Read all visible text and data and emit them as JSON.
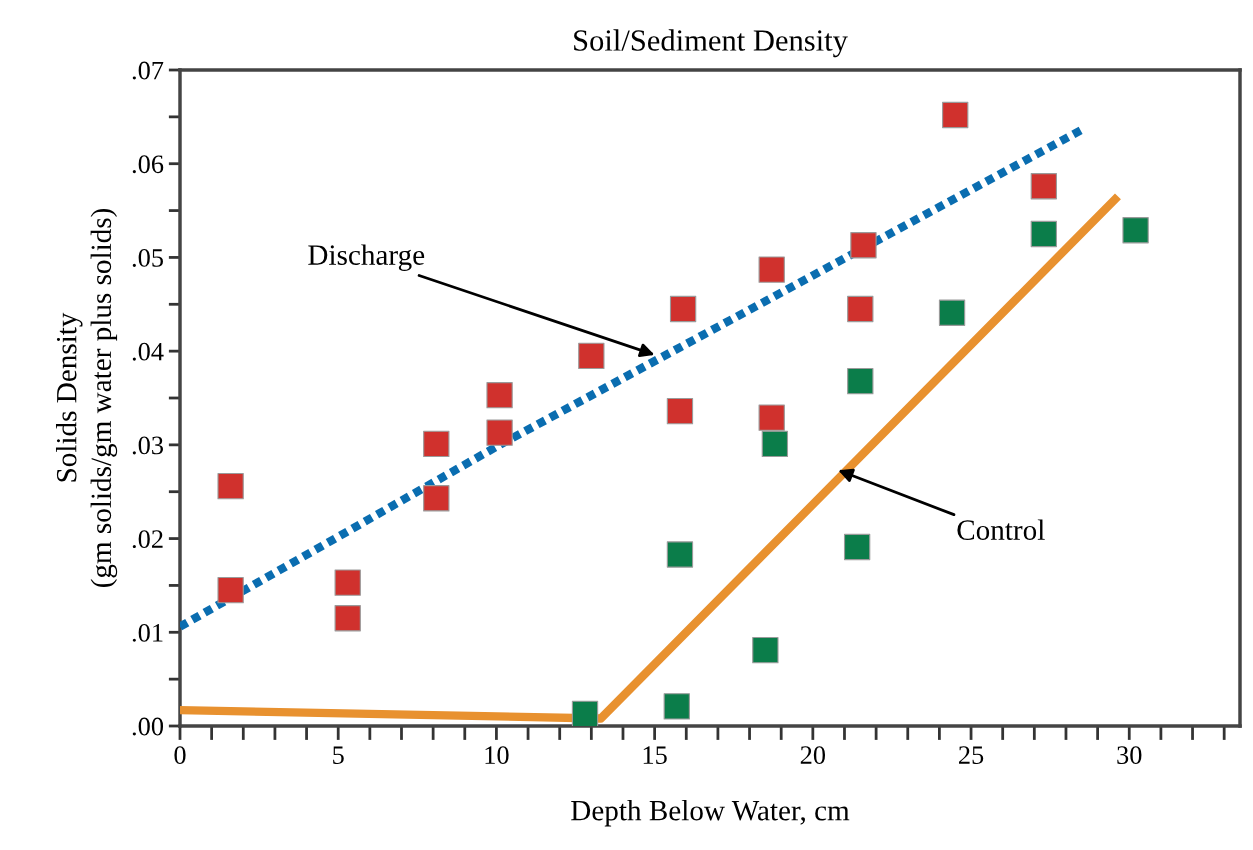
{
  "chart_data": {
    "type": "scatter",
    "title": "Soil/Sediment Density",
    "xlabel": "Depth Below Water, cm",
    "ylabel": "Solids Density\n(gm solids/gm water plus solids)",
    "xlim": [
      0,
      33.5
    ],
    "ylim": [
      0,
      0.07
    ],
    "xticks": [
      0,
      {
        "value": 1,
        "label": null
      },
      {
        "value": 2,
        "label": null
      },
      {
        "value": 3,
        "label": null
      },
      {
        "value": 4,
        "label": null
      },
      5,
      {
        "value": 6,
        "label": null
      },
      {
        "value": 7,
        "label": null
      },
      {
        "value": 8,
        "label": null
      },
      {
        "value": 9,
        "label": null
      },
      10,
      {
        "value": 11,
        "label": null
      },
      {
        "value": 12,
        "label": null
      },
      {
        "value": 13,
        "label": null
      },
      {
        "value": 14,
        "label": null
      },
      15,
      {
        "value": 16,
        "label": null
      },
      {
        "value": 17,
        "label": null
      },
      {
        "value": 18,
        "label": null
      },
      {
        "value": 19,
        "label": null
      },
      20,
      {
        "value": 21,
        "label": null
      },
      {
        "value": 22,
        "label": null
      },
      {
        "value": 23,
        "label": null
      },
      {
        "value": 24,
        "label": null
      },
      25,
      {
        "value": 26,
        "label": null
      },
      {
        "value": 27,
        "label": null
      },
      {
        "value": 28,
        "label": null
      },
      {
        "value": 29,
        "label": null
      },
      30,
      {
        "value": 31,
        "label": null
      },
      {
        "value": 32,
        "label": null
      },
      {
        "value": 33,
        "label": null
      }
    ],
    "yticks": [
      {
        "value": 0,
        "label": ".00"
      },
      {
        "value": 0.005,
        "label": null
      },
      {
        "value": 0.01,
        "label": ".01"
      },
      {
        "value": 0.015,
        "label": null
      },
      {
        "value": 0.02,
        "label": ".02"
      },
      {
        "value": 0.025,
        "label": null
      },
      {
        "value": 0.03,
        "label": ".03"
      },
      {
        "value": 0.035,
        "label": null
      },
      {
        "value": 0.04,
        "label": ".04"
      },
      {
        "value": 0.045,
        "label": null
      },
      {
        "value": 0.05,
        "label": ".05"
      },
      {
        "value": 0.055,
        "label": null
      },
      {
        "value": 0.06,
        "label": ".06"
      },
      {
        "value": 0.065,
        "label": null
      },
      {
        "value": 0.07,
        "label": ".07"
      }
    ],
    "grid": false,
    "legend": false,
    "series": [
      {
        "marker": "square",
        "color": "#d0312d",
        "x": [
          1.6,
          1.6,
          5.3,
          5.3,
          8.1,
          8.1,
          10.1,
          10.1,
          13.0,
          15.9,
          15.8,
          18.7,
          18.7,
          21.6,
          21.5,
          24.5,
          27.3
        ],
        "values": [
          0.0256,
          0.0145,
          0.0153,
          0.0115,
          0.0301,
          0.0243,
          0.0353,
          0.0313,
          0.0395,
          0.0445,
          0.0336,
          0.0487,
          0.0329,
          0.0513,
          0.0445,
          0.0652,
          0.0576
        ]
      },
      {
        "marker": "square",
        "color": "#0b7d4a",
        "x": [
          12.8,
          15.7,
          15.8,
          18.5,
          18.8,
          21.4,
          21.5,
          24.4,
          27.3,
          30.2
        ],
        "values": [
          0.0013,
          0.0021,
          0.0183,
          0.0081,
          0.0301,
          0.0191,
          0.0368,
          0.0441,
          0.0525,
          0.0529
        ]
      },
      {
        "type": "line",
        "line_style": "dotted",
        "marker": "none",
        "color": "#0a6db0",
        "x": [
          0,
          10,
          21.6,
          28.6
        ],
        "values": [
          0.0106,
          0.0298,
          0.051,
          0.0638
        ]
      },
      {
        "type": "line",
        "line_style": "solid",
        "marker": "none",
        "color": "#e8912f",
        "x": [
          0,
          13.3,
          29.55
        ],
        "values": [
          0.0017,
          0.0008,
          0.0562
        ]
      }
    ],
    "annotations": [
      {
        "text": "Discharge",
        "x": 15.0,
        "y": 0.0396
      },
      {
        "text": "Control",
        "x": 20.8,
        "y": 0.0273
      }
    ]
  }
}
